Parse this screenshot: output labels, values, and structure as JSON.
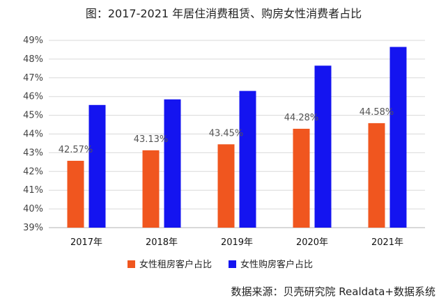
{
  "colors": {
    "rent": "#F0561F",
    "buy": "#1414F0"
  },
  "chart_data": {
    "type": "bar",
    "title": "图：2017-2021 年居住消费租赁、购房女性消费者占比",
    "categories": [
      "2017年",
      "2018年",
      "2019年",
      "2020年",
      "2021年"
    ],
    "series": [
      {
        "name": "女性租房客户占比",
        "values": [
          42.57,
          43.13,
          43.45,
          44.28,
          44.58
        ],
        "labels": [
          "42.57%",
          "43.13%",
          "43.45%",
          "44.28%",
          "44.58%"
        ]
      },
      {
        "name": "女性购房客户占比",
        "values": [
          45.55,
          45.85,
          46.3,
          47.65,
          48.65
        ]
      }
    ],
    "ylim": [
      39,
      49
    ],
    "yticks": [
      "39%",
      "40%",
      "41%",
      "42%",
      "43%",
      "44%",
      "45%",
      "46%",
      "47%",
      "48%",
      "49%"
    ],
    "grid": true,
    "legend": "bottom"
  },
  "source": "数据来源：贝壳研究院 Realdata+数据系统"
}
